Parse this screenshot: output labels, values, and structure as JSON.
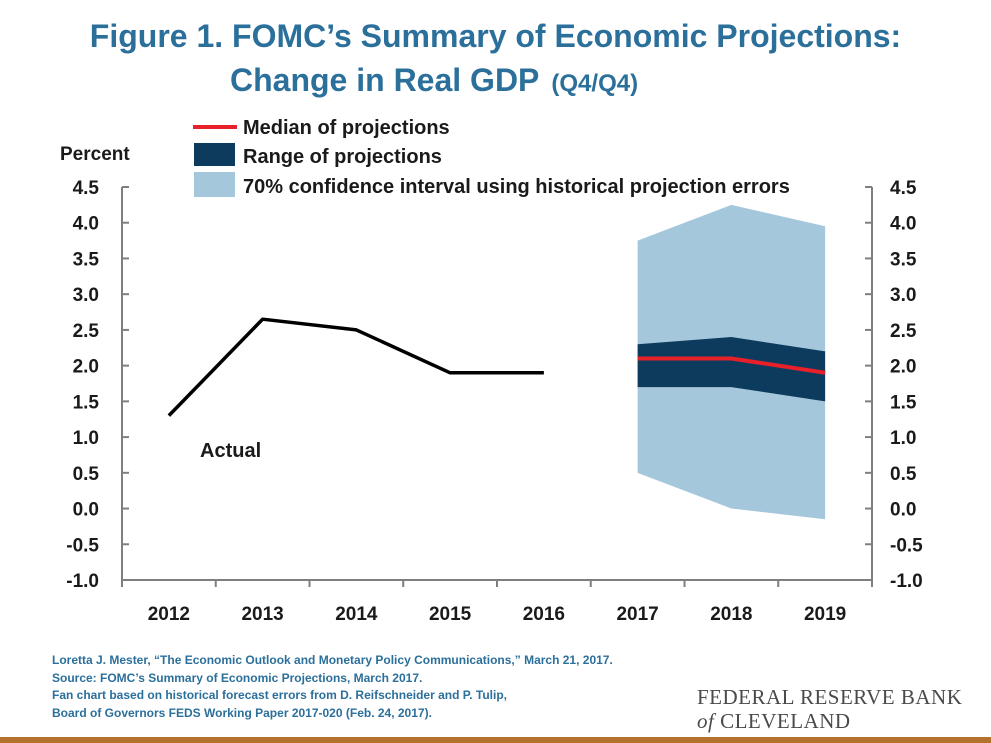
{
  "title": {
    "line1": "Figure 1. FOMC’s Summary of Economic Projections:",
    "line2": "Change in Real GDP",
    "line2_suffix": "(Q4/Q4)"
  },
  "chart_data": {
    "type": "line",
    "ylabel": "Percent",
    "ylim": [
      -1.0,
      4.5
    ],
    "y_ticks": [
      "4.5",
      "4.0",
      "3.5",
      "3.0",
      "2.5",
      "2.0",
      "1.5",
      "1.0",
      "0.5",
      "0.0",
      "-0.5",
      "-1.0"
    ],
    "y_tick_values": [
      4.5,
      4.0,
      3.5,
      3.0,
      2.5,
      2.0,
      1.5,
      1.0,
      0.5,
      0.0,
      -0.5,
      -1.0
    ],
    "categories": [
      "2012",
      "2013",
      "2014",
      "2015",
      "2016",
      "2017",
      "2018",
      "2019"
    ],
    "actual": {
      "label": "Actual",
      "x": [
        "2012",
        "2013",
        "2014",
        "2015",
        "2016"
      ],
      "values": [
        1.3,
        2.65,
        2.5,
        1.9,
        1.9
      ],
      "color": "#000000"
    },
    "projections": {
      "x": [
        "2017",
        "2018",
        "2019"
      ],
      "median": {
        "name": "Median of projections",
        "values": [
          2.1,
          2.1,
          1.9
        ],
        "color": "#e8202a"
      },
      "range": {
        "name": "Range of projections",
        "low": [
          1.7,
          1.7,
          1.5
        ],
        "high": [
          2.3,
          2.4,
          2.2
        ],
        "color": "#0d3b5e"
      },
      "ci70": {
        "name": "70% confidence interval using historical projection errors",
        "low": [
          0.5,
          0.0,
          -0.15
        ],
        "high": [
          3.75,
          4.25,
          3.95
        ],
        "color": "#a4c7dc"
      }
    },
    "legend_position": "top",
    "grid": false
  },
  "footer": {
    "line1": "Loretta J. Mester, “The Economic Outlook and Monetary Policy Communications,” March 21, 2017.",
    "line2": "Source: FOMC’s Summary of Economic Projections, March 2017.",
    "line3": "Fan chart based on historical forecast errors from D. Reifschneider and P. Tulip,",
    "line4": "Board of Governors FEDS Working Paper 2017-020 (Feb. 24, 2017)."
  },
  "logo": {
    "line1": "FEDERAL RESERVE BANK",
    "of": "of",
    "line2": "CLEVELAND"
  },
  "colors": {
    "title": "#2b6f9b",
    "axis": "#7f7f7f",
    "bottom_rule": "#b5722f"
  }
}
